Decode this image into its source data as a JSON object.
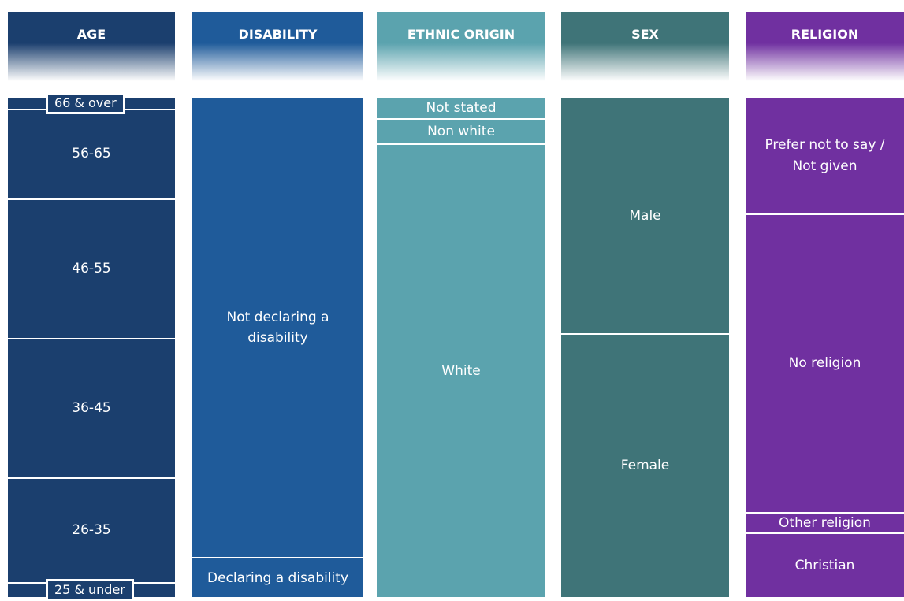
{
  "chart_data": {
    "type": "stacked-column",
    "columns": [
      {
        "name": "AGE",
        "color": "#1b3f6e",
        "categories": [
          "66 & over",
          "56-65",
          "46-55",
          "36-45",
          "26-35",
          "25 & under"
        ],
        "values": [
          2,
          18,
          28,
          28,
          21,
          3
        ]
      },
      {
        "name": "DISABILITY",
        "color": "#1f5b9a",
        "categories": [
          "Not declaring a disability",
          "Declaring a disability"
        ],
        "values": [
          92,
          8
        ]
      },
      {
        "name": "ETHNIC ORIGIN",
        "color": "#5ba3ae",
        "categories": [
          "Not stated",
          "Non white",
          "White"
        ],
        "values": [
          4,
          5,
          91
        ]
      },
      {
        "name": "SEX",
        "color": "#3f7478",
        "categories": [
          "Male",
          "Female"
        ],
        "values": [
          47,
          53
        ]
      },
      {
        "name": "RELIGION",
        "color": "#7030a0",
        "categories": [
          "Prefer not to say / Not given",
          "No religion",
          "Other religion",
          "Christian"
        ],
        "values": [
          23,
          60,
          4,
          13
        ]
      }
    ]
  }
}
